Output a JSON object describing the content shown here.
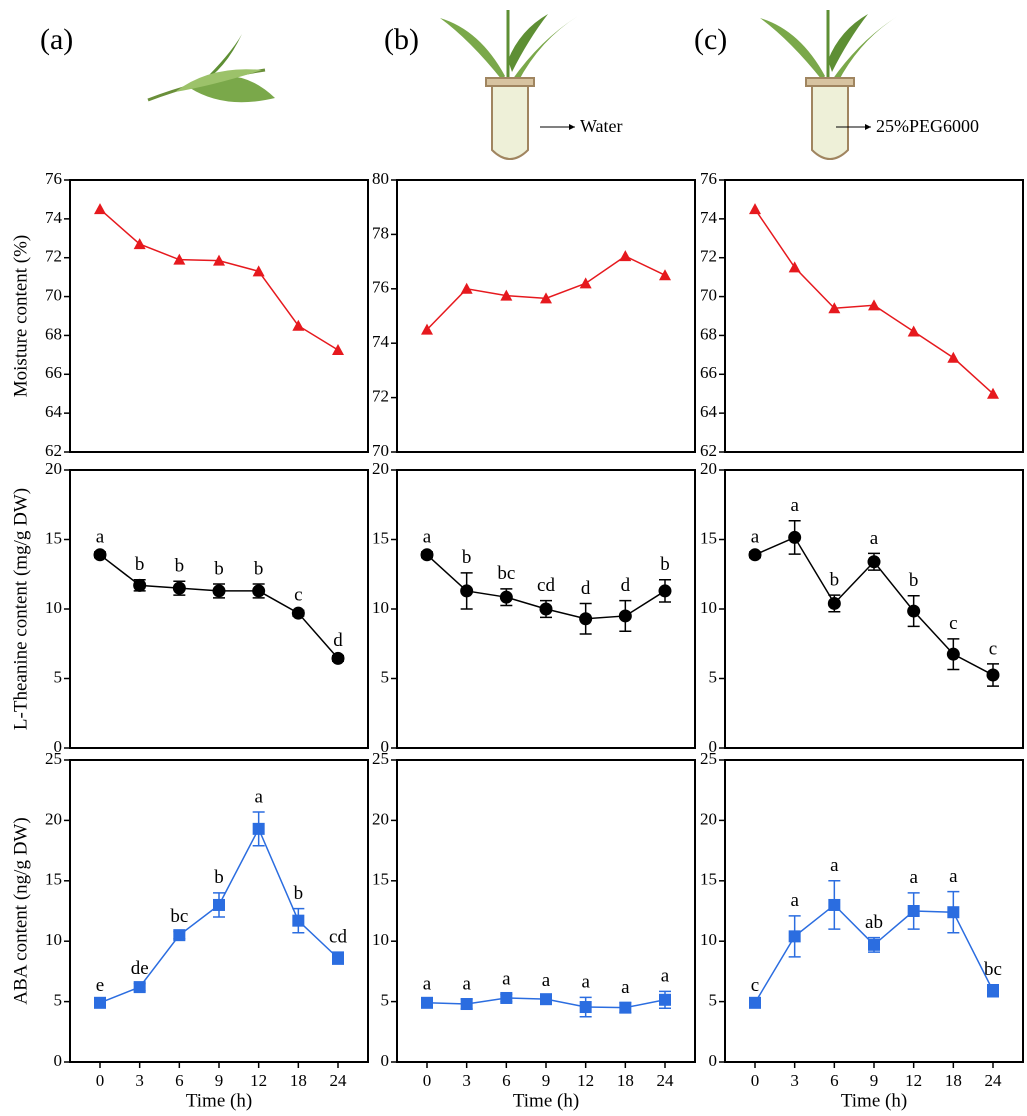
{
  "figure": {
    "panel_labels": [
      "(a)",
      "(b)",
      "(c)"
    ],
    "treatments": [
      "Water",
      "25%PEG6000"
    ]
  },
  "chart_data": [
    {
      "type": "line",
      "categories": [
        "0",
        "3",
        "6",
        "9",
        "12",
        "18",
        "24"
      ],
      "ylabel": "Moisture content  (%)",
      "ylim": [
        62,
        76
      ],
      "yticks": [
        62,
        64,
        66,
        68,
        70,
        72,
        74,
        76
      ],
      "marker": "triangle",
      "series": [
        {
          "color": "#e6191e",
          "values": [
            74.5,
            72.7,
            71.9,
            71.85,
            71.3,
            68.5,
            67.25
          ]
        }
      ]
    },
    {
      "type": "line",
      "categories": [
        "0",
        "3",
        "6",
        "9",
        "12",
        "18",
        "24"
      ],
      "ylim": [
        70,
        80
      ],
      "yticks": [
        70,
        72,
        74,
        76,
        78,
        80
      ],
      "marker": "triangle",
      "series": [
        {
          "color": "#e6191e",
          "values": [
            74.5,
            76.0,
            75.75,
            75.65,
            76.2,
            77.2,
            76.5
          ]
        }
      ]
    },
    {
      "type": "line",
      "categories": [
        "0",
        "3",
        "6",
        "9",
        "12",
        "18",
        "24"
      ],
      "ylim": [
        62,
        76
      ],
      "yticks": [
        62,
        64,
        66,
        68,
        70,
        72,
        74,
        76
      ],
      "marker": "triangle",
      "series": [
        {
          "color": "#e6191e",
          "values": [
            74.5,
            71.5,
            69.4,
            69.55,
            68.2,
            66.85,
            65.0
          ]
        }
      ]
    },
    {
      "type": "line",
      "categories": [
        "0",
        "3",
        "6",
        "9",
        "12",
        "18",
        "24"
      ],
      "ylabel": "L-Theanine content (mg/g DW)",
      "ylim": [
        0,
        20
      ],
      "yticks": [
        0,
        5,
        10,
        15,
        20
      ],
      "marker": "circle",
      "series": [
        {
          "color": "#000000",
          "values": [
            13.9,
            11.7,
            11.5,
            11.3,
            11.3,
            9.7,
            6.45
          ],
          "errors": [
            0.2,
            0.4,
            0.5,
            0.5,
            0.5,
            0.2,
            0.2
          ],
          "annotations": [
            "a",
            "b",
            "b",
            "b",
            "b",
            "c",
            "d"
          ]
        }
      ]
    },
    {
      "type": "line",
      "categories": [
        "0",
        "3",
        "6",
        "9",
        "12",
        "18",
        "24"
      ],
      "ylim": [
        0,
        20
      ],
      "yticks": [
        0,
        5,
        10,
        15,
        20
      ],
      "marker": "circle",
      "series": [
        {
          "color": "#000000",
          "values": [
            13.9,
            11.3,
            10.85,
            10.0,
            9.3,
            9.5,
            11.3
          ],
          "errors": [
            0.2,
            1.3,
            0.6,
            0.6,
            1.1,
            1.1,
            0.8
          ],
          "annotations": [
            "a",
            "b",
            "bc",
            "cd",
            "d",
            "d",
            "b"
          ]
        }
      ]
    },
    {
      "type": "line",
      "categories": [
        "0",
        "3",
        "6",
        "9",
        "12",
        "18",
        "24"
      ],
      "ylim": [
        0,
        20
      ],
      "yticks": [
        0,
        5,
        10,
        15,
        20
      ],
      "marker": "circle",
      "series": [
        {
          "color": "#000000",
          "values": [
            13.9,
            15.15,
            10.4,
            13.4,
            9.85,
            6.75,
            5.25
          ],
          "errors": [
            0.2,
            1.2,
            0.6,
            0.6,
            1.1,
            1.1,
            0.8
          ],
          "annotations": [
            "a",
            "a",
            "b",
            "a",
            "b",
            "c",
            "c"
          ]
        }
      ]
    },
    {
      "type": "line",
      "categories": [
        "0",
        "3",
        "6",
        "9",
        "12",
        "18",
        "24"
      ],
      "ylabel": "ABA  content (ng/g DW)",
      "xlabel": "Time (h)",
      "ylim": [
        0,
        25
      ],
      "yticks": [
        0,
        5,
        10,
        15,
        20,
        25
      ],
      "marker": "square",
      "series": [
        {
          "color": "#2b6de0",
          "values": [
            4.9,
            6.2,
            10.5,
            13.0,
            19.3,
            11.7,
            8.6
          ],
          "errors": [
            0.2,
            0.3,
            0.3,
            1.0,
            1.4,
            1.0,
            0.5
          ],
          "annotations": [
            "e",
            "de",
            "bc",
            "b",
            "a",
            "b",
            "cd"
          ]
        }
      ]
    },
    {
      "type": "line",
      "categories": [
        "0",
        "3",
        "6",
        "9",
        "12",
        "18",
        "24"
      ],
      "xlabel": "Time (h)",
      "ylim": [
        0,
        25
      ],
      "yticks": [
        0,
        5,
        10,
        15,
        20,
        25
      ],
      "marker": "square",
      "series": [
        {
          "color": "#2b6de0",
          "values": [
            4.9,
            4.8,
            5.3,
            5.2,
            4.55,
            4.5,
            5.15
          ],
          "errors": [
            0.3,
            0.4,
            0.3,
            0.3,
            0.8,
            0.4,
            0.7
          ],
          "annotations": [
            "a",
            "a",
            "a",
            "a",
            "a",
            "a",
            "a"
          ]
        }
      ]
    },
    {
      "type": "line",
      "categories": [
        "0",
        "3",
        "6",
        "9",
        "12",
        "18",
        "24"
      ],
      "xlabel": "Time (h)",
      "ylim": [
        0,
        25
      ],
      "yticks": [
        0,
        5,
        10,
        15,
        20,
        25
      ],
      "marker": "square",
      "series": [
        {
          "color": "#2b6de0",
          "values": [
            4.9,
            10.4,
            13.0,
            9.7,
            12.5,
            12.4,
            5.9
          ],
          "errors": [
            0.2,
            1.7,
            2.0,
            0.6,
            1.5,
            1.7,
            0.5
          ],
          "annotations": [
            "c",
            "a",
            "a",
            "ab",
            "a",
            "a",
            "bc"
          ]
        }
      ]
    }
  ]
}
